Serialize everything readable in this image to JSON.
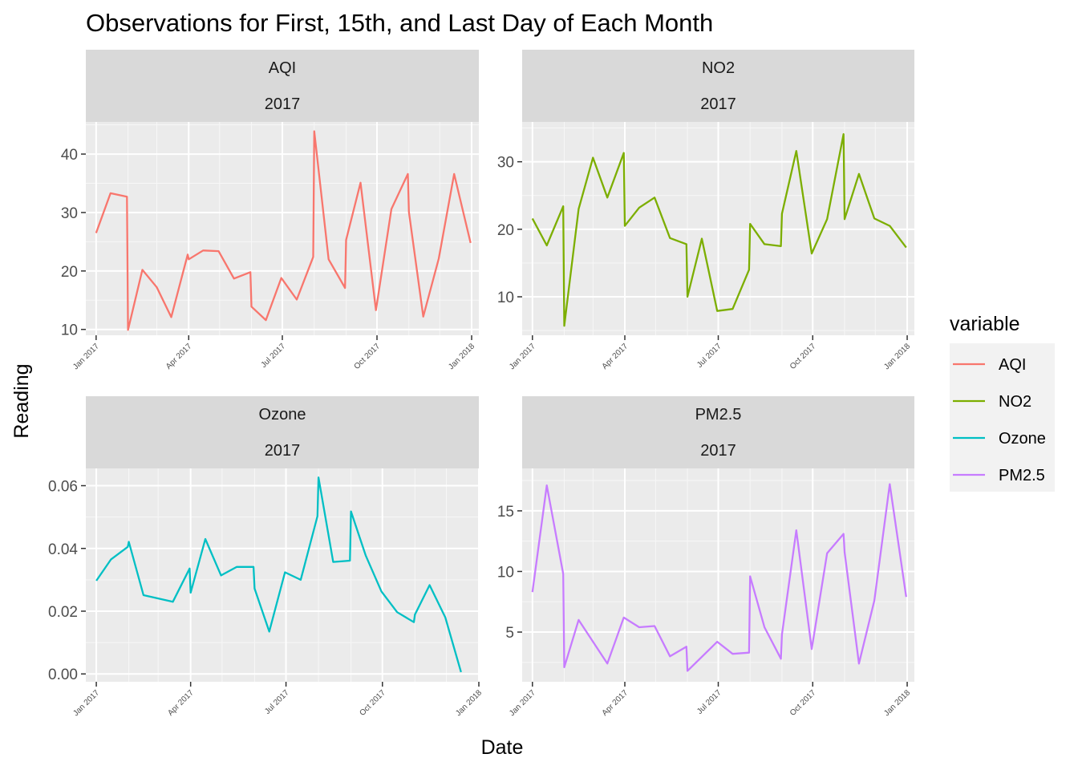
{
  "chart_data": {
    "type": "line",
    "title": "Observations for First, 15th, and Last Day of Each Month",
    "xlabel": "Date",
    "ylabel": "Reading",
    "grid": true,
    "facet_scales": "free",
    "legend": {
      "title": "variable",
      "position": "right",
      "entries": [
        "AQI",
        "NO2",
        "Ozone",
        "PM2.5"
      ]
    },
    "panels": [
      {
        "name": "AQI",
        "strip": [
          "AQI",
          "2017"
        ],
        "color": "#F8766D",
        "ylim": [
          9,
          45.5
        ],
        "yticks": [
          10,
          20,
          30,
          40
        ],
        "yticklabels": [
          "10",
          "20",
          "30",
          "40"
        ],
        "xlim": [
          "2016-12-22",
          "2018-01-08"
        ],
        "xticks": [
          "2017-01-01",
          "2017-04-01",
          "2017-07-01",
          "2017-10-01",
          "2018-01-01"
        ],
        "xticklabels": [
          "Jan 2017",
          "Apr 2017",
          "Jul 2017",
          "Oct 2017",
          "Jan 2018"
        ],
        "points": [
          [
            "2017-01-01",
            26.5
          ],
          [
            "2017-01-15",
            33.3
          ],
          [
            "2017-01-31",
            32.7
          ],
          [
            "2017-02-01",
            9.9
          ],
          [
            "2017-02-15",
            20.2
          ],
          [
            "2017-03-01",
            17.2
          ],
          [
            "2017-03-15",
            12.1
          ],
          [
            "2017-03-31",
            22.8
          ],
          [
            "2017-04-01",
            22.0
          ],
          [
            "2017-04-15",
            23.5
          ],
          [
            "2017-04-30",
            23.4
          ],
          [
            "2017-05-15",
            18.7
          ],
          [
            "2017-05-31",
            19.8
          ],
          [
            "2017-06-01",
            13.9
          ],
          [
            "2017-06-15",
            11.6
          ],
          [
            "2017-06-30",
            18.8
          ],
          [
            "2017-07-15",
            15.1
          ],
          [
            "2017-07-31",
            22.4
          ],
          [
            "2017-08-01",
            43.9
          ],
          [
            "2017-08-15",
            22.0
          ],
          [
            "2017-08-31",
            17.1
          ],
          [
            "2017-09-01",
            25.3
          ],
          [
            "2017-09-15",
            35.1
          ],
          [
            "2017-09-30",
            13.3
          ],
          [
            "2017-10-15",
            30.6
          ],
          [
            "2017-10-31",
            36.6
          ],
          [
            "2017-11-01",
            30.1
          ],
          [
            "2017-11-15",
            12.2
          ],
          [
            "2017-11-30",
            22.1
          ],
          [
            "2017-12-15",
            36.6
          ],
          [
            "2017-12-31",
            24.8
          ]
        ]
      },
      {
        "name": "NO2",
        "strip": [
          "NO2",
          "2017"
        ],
        "color": "#7CAE00",
        "ylim": [
          4.3,
          35.9
        ],
        "yticks": [
          10,
          20,
          30
        ],
        "yticklabels": [
          "10",
          "20",
          "30"
        ],
        "xlim": [
          "2016-12-22",
          "2018-01-08"
        ],
        "xticks": [
          "2017-01-01",
          "2017-04-01",
          "2017-07-01",
          "2017-10-01",
          "2018-01-01"
        ],
        "xticklabels": [
          "Jan 2017",
          "Apr 2017",
          "Jul 2017",
          "Oct 2017",
          "Jan 2018"
        ],
        "points": [
          [
            "2017-01-01",
            21.6
          ],
          [
            "2017-01-15",
            17.6
          ],
          [
            "2017-01-31",
            23.4
          ],
          [
            "2017-02-01",
            5.7
          ],
          [
            "2017-02-15",
            23.0
          ],
          [
            "2017-03-01",
            30.6
          ],
          [
            "2017-03-15",
            24.7
          ],
          [
            "2017-03-31",
            31.3
          ],
          [
            "2017-04-01",
            20.5
          ],
          [
            "2017-04-15",
            23.2
          ],
          [
            "2017-04-30",
            24.7
          ],
          [
            "2017-05-15",
            18.7
          ],
          [
            "2017-05-31",
            17.8
          ],
          [
            "2017-06-01",
            10.0
          ],
          [
            "2017-06-15",
            18.6
          ],
          [
            "2017-06-30",
            7.9
          ],
          [
            "2017-07-15",
            8.2
          ],
          [
            "2017-07-31",
            14.0
          ],
          [
            "2017-08-01",
            20.8
          ],
          [
            "2017-08-15",
            17.8
          ],
          [
            "2017-08-31",
            17.5
          ],
          [
            "2017-09-01",
            22.3
          ],
          [
            "2017-09-15",
            31.6
          ],
          [
            "2017-09-30",
            16.4
          ],
          [
            "2017-10-15",
            21.5
          ],
          [
            "2017-10-31",
            34.1
          ],
          [
            "2017-11-01",
            21.5
          ],
          [
            "2017-11-15",
            28.2
          ],
          [
            "2017-11-30",
            21.6
          ],
          [
            "2017-12-15",
            20.5
          ],
          [
            "2017-12-31",
            17.3
          ]
        ]
      },
      {
        "name": "Ozone",
        "strip": [
          "Ozone",
          "2017"
        ],
        "color": "#00BFC4",
        "ylim": [
          -0.0025,
          0.0655
        ],
        "yticks": [
          0,
          0.02,
          0.04,
          0.06
        ],
        "yticklabels": [
          "0.00",
          "0.02",
          "0.04",
          "0.06"
        ],
        "xlim": [
          "2016-12-22",
          "2018-01-01"
        ],
        "xticks": [
          "2017-01-01",
          "2017-04-01",
          "2017-07-01",
          "2017-10-01",
          "2018-01-01"
        ],
        "xticklabels": [
          "Jan 2017",
          "Apr 2017",
          "Jul 2017",
          "Oct 2017",
          "Jan 2018"
        ],
        "points": [
          [
            "2017-01-01",
            0.0297
          ],
          [
            "2017-01-15",
            0.0365
          ],
          [
            "2017-01-31",
            0.0405
          ],
          [
            "2017-02-01",
            0.0421
          ],
          [
            "2017-02-15",
            0.0251
          ],
          [
            "2017-03-15",
            0.023
          ],
          [
            "2017-03-31",
            0.0336
          ],
          [
            "2017-04-01",
            0.0259
          ],
          [
            "2017-04-15",
            0.043
          ],
          [
            "2017-04-30",
            0.0314
          ],
          [
            "2017-05-15",
            0.0341
          ],
          [
            "2017-05-31",
            0.0341
          ],
          [
            "2017-06-01",
            0.0272
          ],
          [
            "2017-06-15",
            0.0135
          ],
          [
            "2017-06-30",
            0.0324
          ],
          [
            "2017-07-15",
            0.03
          ],
          [
            "2017-07-31",
            0.0503
          ],
          [
            "2017-08-01",
            0.0626
          ],
          [
            "2017-08-15",
            0.0357
          ],
          [
            "2017-08-31",
            0.0361
          ],
          [
            "2017-09-01",
            0.0518
          ],
          [
            "2017-09-15",
            0.0378
          ],
          [
            "2017-09-30",
            0.0263
          ],
          [
            "2017-10-15",
            0.0197
          ],
          [
            "2017-10-31",
            0.0165
          ],
          [
            "2017-11-01",
            0.0189
          ],
          [
            "2017-11-15",
            0.0283
          ],
          [
            "2017-11-30",
            0.018
          ],
          [
            "2017-12-15",
            0.0006
          ]
        ]
      },
      {
        "name": "PM2.5",
        "strip": [
          "PM2.5",
          "2017"
        ],
        "color": "#C77CFF",
        "ylim": [
          0.9,
          18.5
        ],
        "yticks": [
          5,
          10,
          15
        ],
        "yticklabels": [
          "5",
          "10",
          "15"
        ],
        "xlim": [
          "2016-12-22",
          "2018-01-08"
        ],
        "xticks": [
          "2017-01-01",
          "2017-04-01",
          "2017-07-01",
          "2017-10-01",
          "2018-01-01"
        ],
        "xticklabels": [
          "Jan 2017",
          "Apr 2017",
          "Jul 2017",
          "Oct 2017",
          "Jan 2018"
        ],
        "points": [
          [
            "2017-01-01",
            8.3
          ],
          [
            "2017-01-15",
            17.1
          ],
          [
            "2017-01-31",
            9.8
          ],
          [
            "2017-02-01",
            2.1
          ],
          [
            "2017-02-15",
            6.0
          ],
          [
            "2017-03-15",
            2.4
          ],
          [
            "2017-03-31",
            6.2
          ],
          [
            "2017-04-15",
            5.4
          ],
          [
            "2017-04-30",
            5.5
          ],
          [
            "2017-05-15",
            3.0
          ],
          [
            "2017-05-31",
            3.8
          ],
          [
            "2017-06-01",
            1.8
          ],
          [
            "2017-06-30",
            4.2
          ],
          [
            "2017-07-15",
            3.2
          ],
          [
            "2017-07-31",
            3.3
          ],
          [
            "2017-08-01",
            9.6
          ],
          [
            "2017-08-15",
            5.4
          ],
          [
            "2017-08-31",
            2.8
          ],
          [
            "2017-09-01",
            4.8
          ],
          [
            "2017-09-15",
            13.4
          ],
          [
            "2017-09-30",
            3.6
          ],
          [
            "2017-10-15",
            11.5
          ],
          [
            "2017-10-31",
            13.1
          ],
          [
            "2017-11-01",
            11.6
          ],
          [
            "2017-11-15",
            2.4
          ],
          [
            "2017-11-30",
            7.6
          ],
          [
            "2017-12-15",
            17.2
          ],
          [
            "2017-12-31",
            7.9
          ]
        ]
      }
    ]
  }
}
